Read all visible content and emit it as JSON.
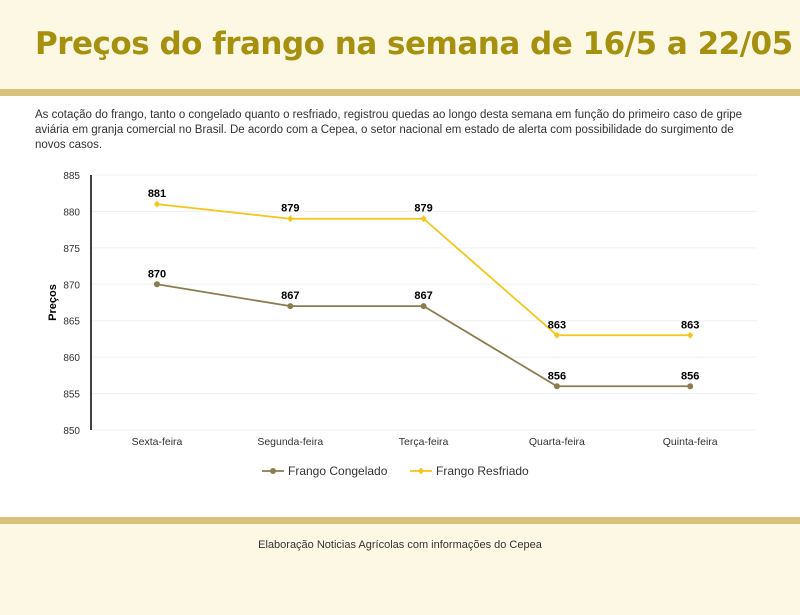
{
  "header": {
    "title": "Preços do frango na semana de 16/5 a 22/05"
  },
  "description": "As cotação do frango, tanto o congelado quanto o resfriado, registrou quedas ao longo desta semana em função do primeiro caso de gripe aviária em granja comercial no Brasil. De acordo com a Cepea, o setor nacional em estado de alerta com possibilidade do surgimento de novos casos.",
  "footer": {
    "source": "Elaboração Noticias Agrícolas com informações do Cepea"
  },
  "colors": {
    "title": "#a5900f",
    "stripe": "#d6c27a",
    "background": "#fdf8e4"
  },
  "chart_data": {
    "type": "line",
    "ylabel": "Preços",
    "ylim": [
      850,
      885
    ],
    "yticks": [
      850,
      855,
      860,
      865,
      870,
      875,
      880,
      885
    ],
    "grid": true,
    "legend": "bottom",
    "categories": [
      "Sexta-feira",
      "Segunda-feira",
      "Terça-feira",
      "Quarta-feira",
      "Quinta-feira"
    ],
    "series": [
      {
        "name": "Frango Congelado",
        "values": [
          870,
          867,
          867,
          856,
          856
        ],
        "color": "#8c7d4e",
        "marker": "circle"
      },
      {
        "name": "Frango Resfriado",
        "values": [
          881,
          879,
          879,
          863,
          863
        ],
        "color": "#f5c518",
        "marker": "diamond"
      }
    ]
  }
}
